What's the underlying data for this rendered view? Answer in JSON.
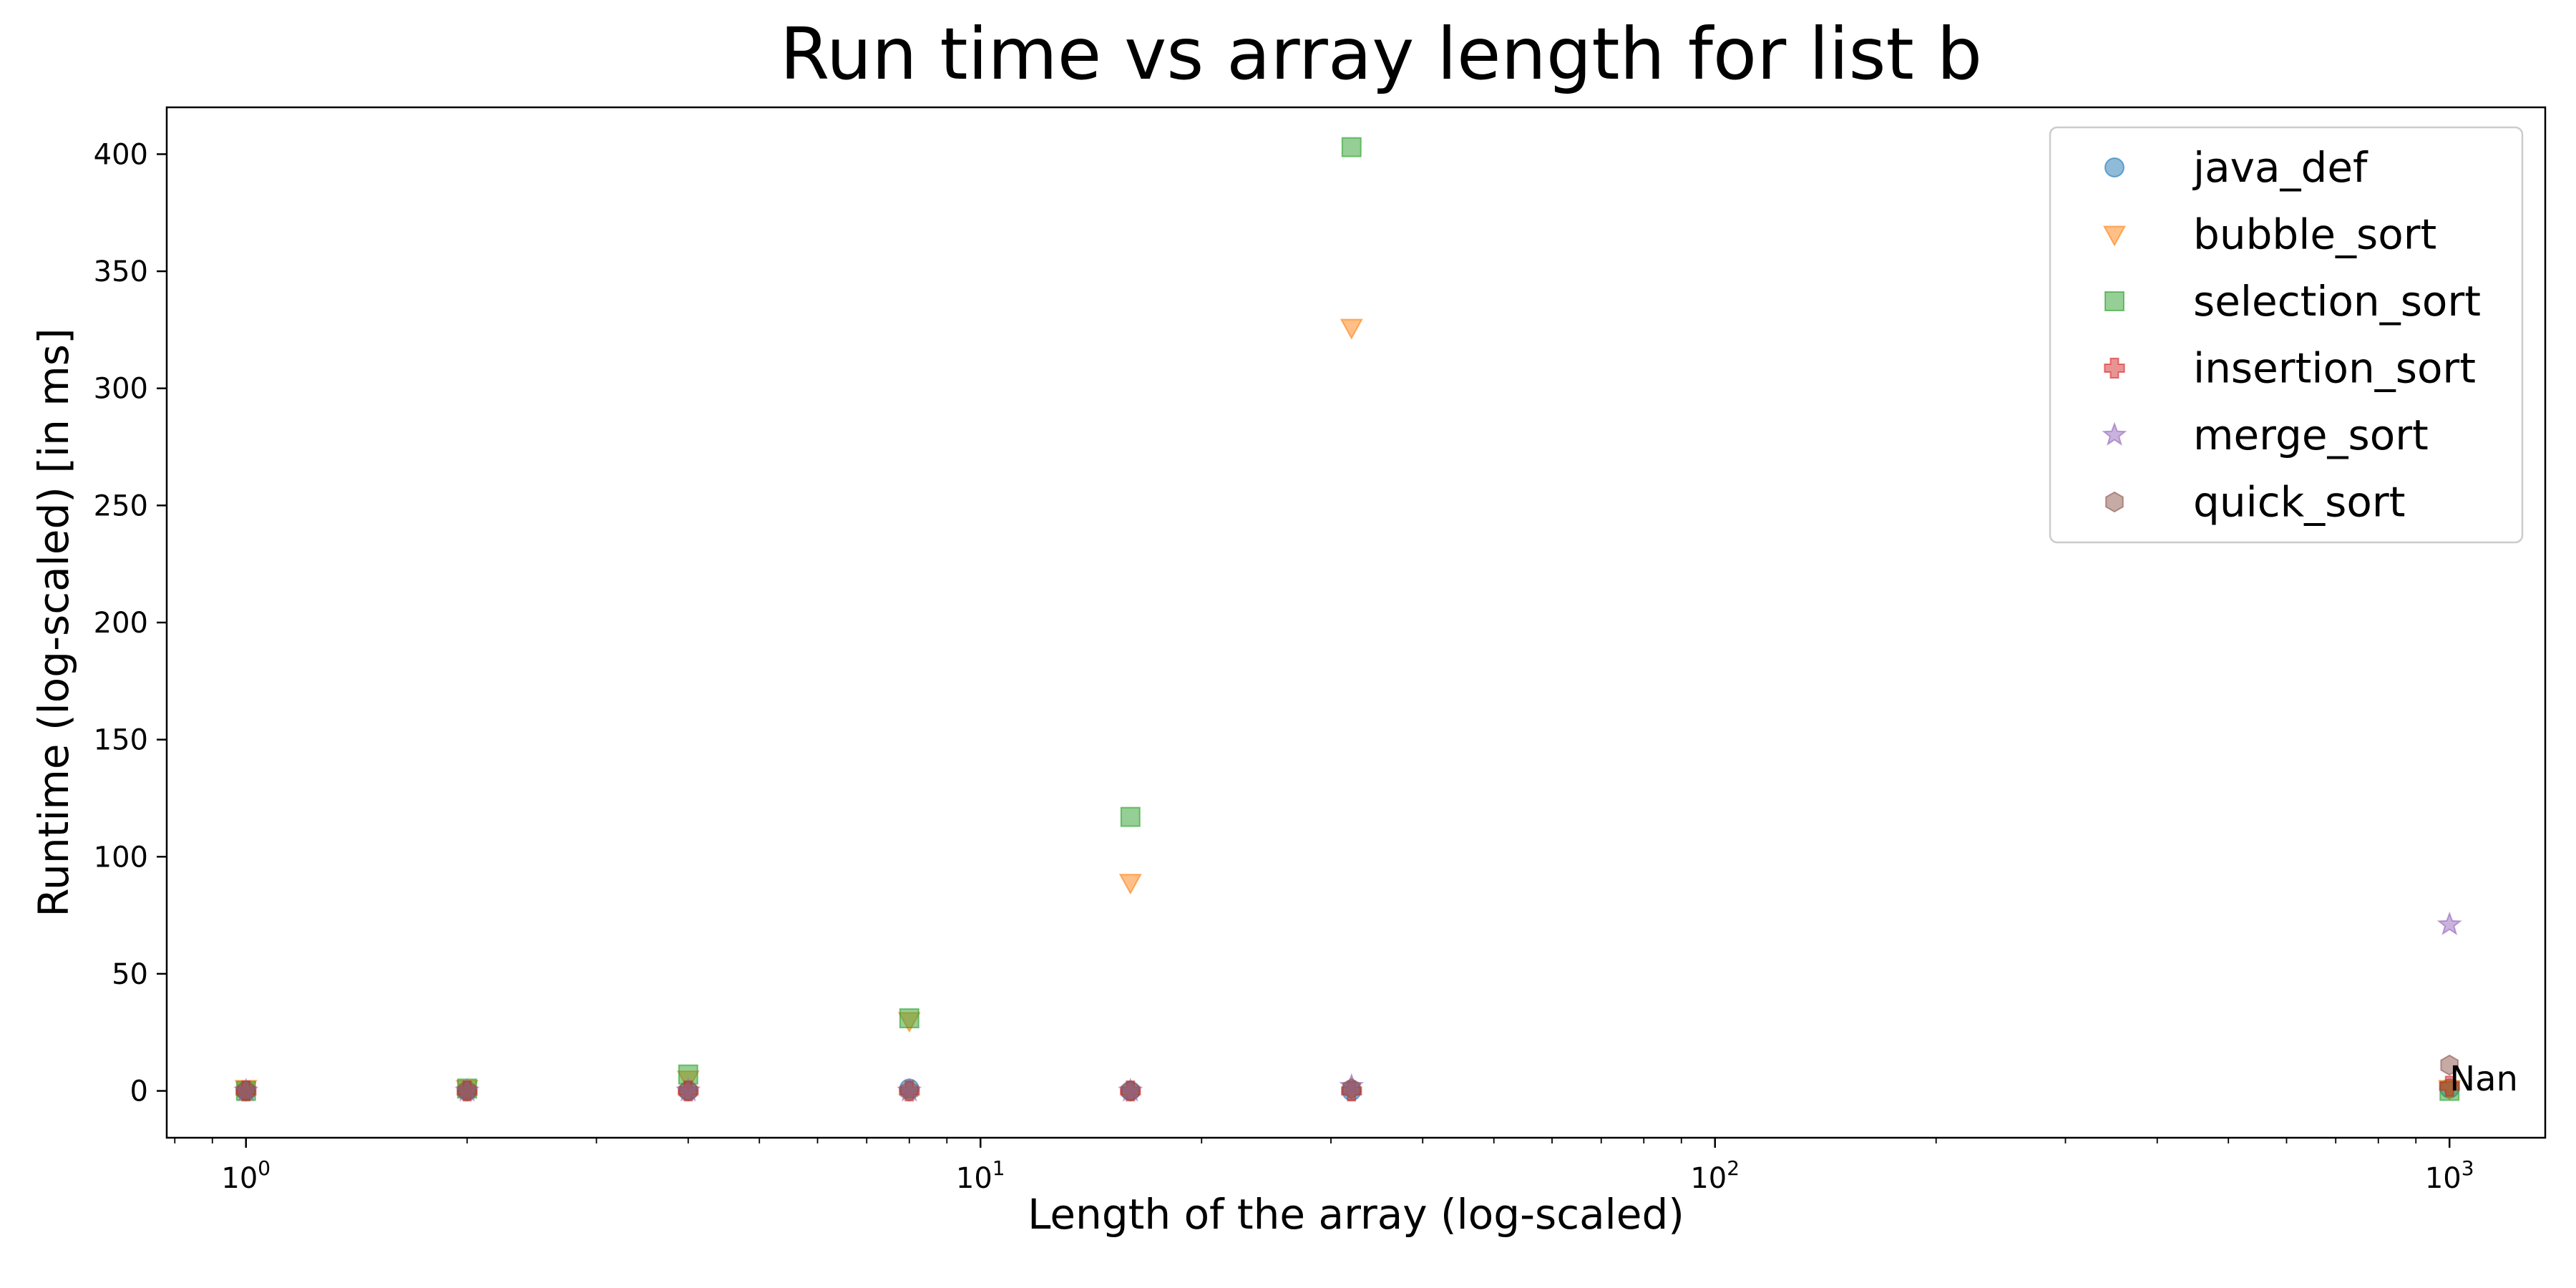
{
  "chart_data": {
    "type": "scatter",
    "title": "Run time vs array length for list b",
    "xlabel": "Length of the array (log-scaled)",
    "ylabel": "Runtime (log-scaled) [in ms]",
    "x_scale": "log",
    "xlim": [
      0.78,
      1350
    ],
    "ylim": [
      -20,
      420
    ],
    "x_ticks": [
      {
        "value": 1,
        "base": "10",
        "exp": "0"
      },
      {
        "value": 10,
        "base": "10",
        "exp": "1"
      },
      {
        "value": 100,
        "base": "10",
        "exp": "2"
      },
      {
        "value": 1000,
        "base": "10",
        "exp": "3"
      }
    ],
    "y_ticks": [
      {
        "value": 0,
        "label": "0"
      },
      {
        "value": 50,
        "label": "50"
      },
      {
        "value": 100,
        "label": "100"
      },
      {
        "value": 150,
        "label": "150"
      },
      {
        "value": 200,
        "label": "200"
      },
      {
        "value": 250,
        "label": "250"
      },
      {
        "value": 300,
        "label": "300"
      },
      {
        "value": 350,
        "label": "350"
      },
      {
        "value": 400,
        "label": "400"
      }
    ],
    "grid": false,
    "legend_position": "top-right",
    "series": [
      {
        "name": "java_def",
        "marker": "circle",
        "color": "#1f77b4",
        "points": [
          [
            1,
            0
          ],
          [
            2,
            0
          ],
          [
            4,
            0
          ],
          [
            8,
            1
          ],
          [
            16,
            0
          ],
          [
            32,
            0
          ],
          [
            1000,
            1
          ]
        ]
      },
      {
        "name": "bubble_sort",
        "marker": "triangle-down",
        "color": "#ff7f0e",
        "points": [
          [
            1,
            1
          ],
          [
            2,
            1
          ],
          [
            4,
            5
          ],
          [
            8,
            30
          ],
          [
            16,
            89
          ],
          [
            32,
            326
          ],
          [
            1000,
            1
          ]
        ]
      },
      {
        "name": "selection_sort",
        "marker": "square",
        "color": "#2ca02c",
        "points": [
          [
            1,
            0
          ],
          [
            2,
            1
          ],
          [
            4,
            7
          ],
          [
            8,
            31
          ],
          [
            16,
            117
          ],
          [
            32,
            403
          ],
          [
            1000,
            0
          ]
        ]
      },
      {
        "name": "insertion_sort",
        "marker": "plus",
        "color": "#d62728",
        "points": [
          [
            1,
            0
          ],
          [
            2,
            0
          ],
          [
            4,
            0
          ],
          [
            8,
            0
          ],
          [
            16,
            0
          ],
          [
            32,
            0
          ],
          [
            1000,
            2
          ]
        ]
      },
      {
        "name": "merge_sort",
        "marker": "star",
        "color": "#9467bd",
        "points": [
          [
            1,
            0
          ],
          [
            2,
            0
          ],
          [
            4,
            0
          ],
          [
            8,
            0
          ],
          [
            16,
            0
          ],
          [
            32,
            2
          ],
          [
            1000,
            71
          ]
        ]
      },
      {
        "name": "quick_sort",
        "marker": "hexagon",
        "color": "#8c564b",
        "points": [
          [
            1,
            0
          ],
          [
            2,
            0
          ],
          [
            4,
            0
          ],
          [
            8,
            0
          ],
          [
            16,
            0
          ],
          [
            32,
            1
          ],
          [
            1000,
            11
          ]
        ]
      }
    ],
    "annotations": [
      {
        "text": "Nan",
        "x": 1000,
        "y": 5
      }
    ]
  }
}
